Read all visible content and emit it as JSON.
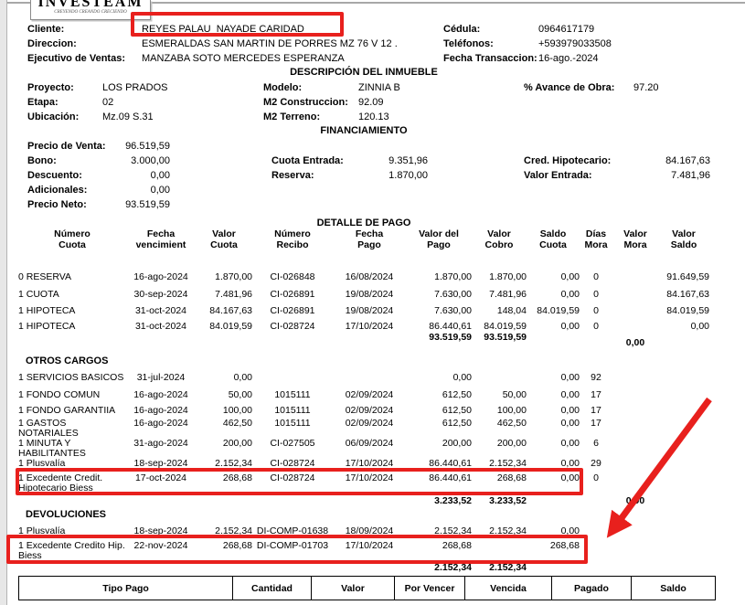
{
  "colors": {
    "annotation_red": "#e8201d"
  },
  "logo": {
    "name": "INVESTEAM",
    "tagline": "CREYENDO CREANDO CRECIENDO"
  },
  "client": {
    "cliente_label": "Cliente:",
    "cliente_value": "REYES PALAU  NAYADE CARIDAD",
    "direccion_label": "Direccion:",
    "direccion_value": "ESMERALDAS SAN MARTIN DE PORRES MZ 76 V 12 .",
    "ejecutivo_label": "Ejecutivo de Ventas:",
    "ejecutivo_value": "MANZABA SOTO MERCEDES ESPERANZA",
    "cedula_label": "Cédula:",
    "cedula_value": "0964617179",
    "telefonos_label": "Teléfonos:",
    "telefonos_value": "+593979033508",
    "fecha_label": "Fecha Transaccion:",
    "fecha_value": "16-ago.-2024"
  },
  "inmueble": {
    "title": "DESCRIPCIÓN DEL INMUEBLE",
    "proyecto_label": "Proyecto:",
    "proyecto": "LOS PRADOS",
    "etapa_label": "Etapa:",
    "etapa": "02",
    "ubicacion_label": "Ubicación:",
    "ubicacion": "Mz.09 S.31",
    "modelo_label": "Modelo:",
    "modelo": "ZINNIA B",
    "m2_construccion_label": "M2 Construccion:",
    "m2_construccion": "92.09",
    "m2_terreno_label": "M2 Terreno:",
    "m2_terreno": "120.13",
    "avance_label": "% Avance de Obra:",
    "avance": "97.20"
  },
  "financiamiento": {
    "title": "FINANCIAMIENTO",
    "precio_venta_label": "Precio de Venta:",
    "precio_venta": "96.519,59",
    "bono_label": "Bono:",
    "bono": "3.000,00",
    "descuento_label": "Descuento:",
    "descuento": "0,00",
    "adicionales_label": "Adicionales:",
    "adicionales": "0,00",
    "precio_neto_label": "Precio Neto:",
    "precio_neto": "93.519,59",
    "cuota_entrada_label": "Cuota Entrada:",
    "cuota_entrada": "9.351,96",
    "reserva_label": "Reserva:",
    "reserva": "1.870,00",
    "cred_hipotecario_label": "Cred. Hipotecario:",
    "cred_hipotecario": "84.167,63",
    "valor_entrada_label": "Valor Entrada:",
    "valor_entrada": "7.481,96"
  },
  "detalle": {
    "title": "DETALLE DE PAGO",
    "headers": [
      "Número\nCuota",
      "Fecha\nvencimient",
      "Valor\nCuota",
      "Número\nRecibo",
      "Fecha\nPago",
      "Valor del\nPago",
      "Valor\nCobro",
      "Saldo\nCuota",
      "Días\nMora",
      "Valor\nMora",
      "Valor\nSaldo"
    ],
    "rows": [
      [
        "0 RESERVA",
        "16-ago-2024",
        "1.870,00",
        "CI-026848",
        "16/08/2024",
        "1.870,00",
        "1.870,00",
        "0,00",
        "0",
        "",
        "91.649,59"
      ],
      [
        "1 CUOTA",
        "30-sep-2024",
        "7.481,96",
        "CI-026891",
        "19/08/2024",
        "7.630,00",
        "7.481,96",
        "0,00",
        "0",
        "",
        "84.167,63"
      ],
      [
        "1 HIPOTECA",
        "31-oct-2024",
        "84.167,63",
        "CI-026891",
        "19/08/2024",
        "7.630,00",
        "148,04",
        "84.019,59",
        "0",
        "",
        "84.019,59"
      ],
      [
        "1 HIPOTECA",
        "31-oct-2024",
        "84.019,59",
        "CI-028724",
        "17/10/2024",
        "86.440,61",
        "84.019,59",
        "0,00",
        "0",
        "",
        "0,00"
      ]
    ],
    "totals_rows": [
      [
        "",
        "",
        "",
        "",
        "",
        "93.519,59",
        "93.519,59",
        "",
        "",
        "0,00",
        ""
      ]
    ],
    "otros": {
      "title": "OTROS CARGOS",
      "rows": [
        [
          "1 SERVICIOS BASICOS",
          "31-jul-2024",
          "0,00",
          "",
          "",
          "0,00",
          "",
          "0,00",
          "92",
          "",
          ""
        ],
        [
          "1 FONDO COMUN",
          "16-ago-2024",
          "50,00",
          "1015111",
          "02/09/2024",
          "612,50",
          "50,00",
          "0,00",
          "17",
          "",
          ""
        ],
        [
          "1 FONDO GARANTIIA",
          "16-ago-2024",
          "100,00",
          "1015111",
          "02/09/2024",
          "612,50",
          "100,00",
          "0,00",
          "17",
          "",
          ""
        ],
        [
          "1 GASTOS\nNOTARIALES",
          "16-ago-2024",
          "462,50",
          "1015111",
          "02/09/2024",
          "612,50",
          "462,50",
          "0,00",
          "17",
          "",
          ""
        ],
        [
          "1 MINUTA Y\nHABILITANTES",
          "31-ago-2024",
          "200,00",
          "CI-027505",
          "06/09/2024",
          "200,00",
          "200,00",
          "0,00",
          "6",
          "",
          ""
        ],
        [
          "1 Plusvalía",
          "18-sep-2024",
          "2.152,34",
          "CI-028724",
          "17/10/2024",
          "86.440,61",
          "2.152,34",
          "0,00",
          "29",
          "",
          ""
        ],
        [
          "1 Excedente Credit.\nHipotecario Biess",
          "17-oct-2024",
          "268,68",
          "CI-028724",
          "17/10/2024",
          "86.440,61",
          "268,68",
          "0,00",
          "0",
          "",
          ""
        ]
      ],
      "totals_rows": [
        [
          "",
          "",
          "",
          "",
          "",
          "3.233,52",
          "3.233,52",
          "",
          "",
          "0,00",
          ""
        ]
      ]
    },
    "devoluciones": {
      "title": "DEVOLUCIONES",
      "rows": [
        [
          "1 Plusvalía",
          "18-sep-2024",
          "2.152,34",
          "DI-COMP-01638",
          "18/09/2024",
          "2.152,34",
          "2.152,34",
          "0,00",
          "",
          "",
          ""
        ],
        [
          "1 Excedente Credito Hip.\nBiess",
          "22-nov-2024",
          "268,68",
          "DI-COMP-01703",
          "17/10/2024",
          "268,68",
          "",
          "268,68",
          "",
          "",
          ""
        ]
      ],
      "totals_rows": [
        [
          "",
          "",
          "",
          "",
          "",
          "2.152,34",
          "2.152,34",
          "",
          "",
          "",
          ""
        ]
      ]
    }
  },
  "summary_table": {
    "headers": [
      "Tipo Pago",
      "Cantidad",
      "Valor",
      "Por Vencer",
      "Vencida",
      "Pagado",
      "Saldo"
    ]
  }
}
